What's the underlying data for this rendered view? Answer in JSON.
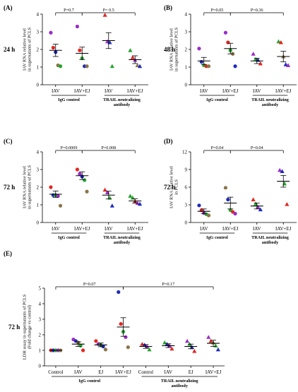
{
  "colors": {
    "red": "#e3261f",
    "blue": "#1f2bbd",
    "green": "#27a32f",
    "purple": "#9a2cc8",
    "olive": "#8a7548",
    "black": "#111111"
  },
  "chart_data": [
    {
      "panel": "(A)",
      "time": "24 h",
      "type": "scatter",
      "ylabel": [
        "IAV RNA relative level",
        "in supernatants of PCLS"
      ],
      "ylim": [
        0,
        4
      ],
      "yticks": [
        0,
        1,
        2,
        3,
        4
      ],
      "categories": [
        "IAV",
        "IAV+EJ",
        "IAV",
        "IAV+EJ"
      ],
      "groups": [
        "IgG control",
        "TRAIL neutralizing antibody"
      ],
      "means": [
        1.95,
        1.78,
        2.5,
        1.42
      ],
      "sem": [
        0.35,
        0.35,
        0.45,
        0.22
      ],
      "points": [
        [
          {
            "y": 2.95,
            "c": "purple",
            "m": "circle"
          },
          {
            "y": 2.1,
            "c": "red",
            "m": "circle"
          },
          {
            "y": 1.85,
            "c": "blue",
            "m": "circle"
          },
          {
            "y": 1.1,
            "c": "olive",
            "m": "circle"
          },
          {
            "y": 1.05,
            "c": "green",
            "m": "circle"
          }
        ],
        [
          {
            "y": 3.3,
            "c": "purple",
            "m": "circle"
          },
          {
            "y": 1.95,
            "c": "red",
            "m": "circle"
          },
          {
            "y": 1.5,
            "c": "green",
            "m": "circle"
          },
          {
            "y": 1.05,
            "c": "blue",
            "m": "circle"
          },
          {
            "y": 1.05,
            "c": "olive",
            "m": "circle"
          }
        ],
        [
          {
            "y": 3.95,
            "c": "red",
            "m": "triangle"
          },
          {
            "y": 2.45,
            "c": "purple",
            "m": "triangle"
          },
          {
            "y": 2.4,
            "c": "blue",
            "m": "triangle"
          },
          {
            "y": 1.05,
            "c": "green",
            "m": "triangle"
          }
        ],
        [
          {
            "y": 1.95,
            "c": "green",
            "m": "triangle"
          },
          {
            "y": 1.55,
            "c": "red",
            "m": "triangle"
          },
          {
            "y": 1.4,
            "c": "purple",
            "m": "triangle"
          },
          {
            "y": 1.1,
            "c": "olive",
            "m": "triangle"
          },
          {
            "y": 1.05,
            "c": "blue",
            "m": "triangle"
          }
        ]
      ],
      "comparisons": [
        {
          "from": 0,
          "to": 1,
          "label": "P=0.7",
          "level": 0
        },
        {
          "from": 1,
          "to": 3,
          "label": "P= 0.5",
          "level": 0
        }
      ]
    },
    {
      "panel": "(B)",
      "time": "48 h",
      "type": "scatter",
      "ylabel": [
        "IAV RNA relative level",
        "in supernatants of PCLS"
      ],
      "ylim": [
        0,
        4
      ],
      "yticks": [
        0,
        1,
        2,
        3,
        4
      ],
      "categories": [
        "IAV",
        "IAV+EJ",
        "IAV",
        "IAV+EJ"
      ],
      "groups": [
        "IgG control",
        "TRAIL neutralizing antibody"
      ],
      "means": [
        1.35,
        2.05,
        1.35,
        1.6
      ],
      "sem": [
        0.2,
        0.3,
        0.15,
        0.3
      ],
      "points": [
        [
          {
            "y": 2.05,
            "c": "purple",
            "m": "circle"
          },
          {
            "y": 1.3,
            "c": "blue",
            "m": "circle"
          },
          {
            "y": 1.1,
            "c": "green",
            "m": "circle"
          },
          {
            "y": 1.05,
            "c": "red",
            "m": "circle"
          },
          {
            "y": 1.05,
            "c": "olive",
            "m": "circle"
          }
        ],
        [
          {
            "y": 2.95,
            "c": "purple",
            "m": "circle"
          },
          {
            "y": 2.4,
            "c": "red",
            "m": "circle"
          },
          {
            "y": 1.95,
            "c": "green",
            "m": "circle"
          },
          {
            "y": 1.75,
            "c": "olive",
            "m": "circle"
          },
          {
            "y": 1.05,
            "c": "blue",
            "m": "circle"
          }
        ],
        [
          {
            "y": 1.75,
            "c": "purple",
            "m": "triangle"
          },
          {
            "y": 1.45,
            "c": "green",
            "m": "triangle"
          },
          {
            "y": 1.4,
            "c": "blue",
            "m": "triangle"
          },
          {
            "y": 1.2,
            "c": "red",
            "m": "triangle"
          }
        ],
        [
          {
            "y": 2.45,
            "c": "green",
            "m": "triangle"
          },
          {
            "y": 2.4,
            "c": "red",
            "m": "triangle"
          },
          {
            "y": 1.6,
            "c": "olive",
            "m": "triangle"
          },
          {
            "y": 1.15,
            "c": "blue",
            "m": "triangle"
          },
          {
            "y": 1.1,
            "c": "purple",
            "m": "triangle"
          }
        ]
      ],
      "comparisons": [
        {
          "from": 0,
          "to": 1,
          "label": "P=0.05",
          "level": 0
        },
        {
          "from": 1,
          "to": 3,
          "label": "P=0.36",
          "level": 0
        }
      ]
    },
    {
      "panel": "(C)",
      "time": "72 h",
      "type": "scatter",
      "ylabel": [
        "IAV RNA relative level",
        "in supernatants of PCLS"
      ],
      "ylim": [
        0,
        4
      ],
      "yticks": [
        0,
        1,
        2,
        3,
        4
      ],
      "categories": [
        "IAV",
        "IAV+EJ",
        "IAV",
        "IAV+EJ"
      ],
      "groups": [
        "IgG control",
        "TRAIL neutralizing antibody"
      ],
      "means": [
        1.6,
        2.65,
        1.55,
        1.22
      ],
      "sem": [
        0.18,
        0.22,
        0.22,
        0.12
      ],
      "points": [
        [
          {
            "y": 2.0,
            "c": "red",
            "m": "circle"
          },
          {
            "y": 1.55,
            "c": "blue",
            "m": "circle"
          },
          {
            "y": 1.55,
            "c": "green",
            "m": "circle"
          },
          {
            "y": 1.5,
            "c": "purple",
            "m": "circle"
          },
          {
            "y": 0.95,
            "c": "olive",
            "m": "circle"
          }
        ],
        [
          {
            "y": 3.0,
            "c": "red",
            "m": "circle"
          },
          {
            "y": 2.75,
            "c": "purple",
            "m": "circle"
          },
          {
            "y": 2.6,
            "c": "blue",
            "m": "circle"
          },
          {
            "y": 2.4,
            "c": "green",
            "m": "circle"
          },
          {
            "y": 1.75,
            "c": "olive",
            "m": "circle"
          }
        ],
        [
          {
            "y": 1.85,
            "c": "red",
            "m": "triangle"
          },
          {
            "y": 1.7,
            "c": "purple",
            "m": "triangle"
          },
          {
            "y": 1.4,
            "c": "green",
            "m": "triangle"
          },
          {
            "y": 0.95,
            "c": "blue",
            "m": "triangle"
          }
        ],
        [
          {
            "y": 1.5,
            "c": "green",
            "m": "triangle"
          },
          {
            "y": 1.4,
            "c": "green",
            "m": "triangle"
          },
          {
            "y": 1.2,
            "c": "red",
            "m": "triangle"
          },
          {
            "y": 1.1,
            "c": "purple",
            "m": "triangle"
          },
          {
            "y": 1.05,
            "c": "blue",
            "m": "triangle"
          }
        ]
      ],
      "comparisons": [
        {
          "from": 0,
          "to": 1,
          "label": "P=0.0009",
          "level": 0
        },
        {
          "from": 1,
          "to": 3,
          "label": "P=0.008",
          "level": 0
        }
      ]
    },
    {
      "panel": "(D)",
      "time": "72 h",
      "type": "scatter",
      "ylabel": [
        "IAV RNA relative level",
        "in PCLS"
      ],
      "ylim": [
        0,
        12
      ],
      "yticks": [
        0,
        3,
        6,
        9,
        12
      ],
      "categories": [
        "IAV",
        "IAV+EJ",
        "IAV",
        "IAV+EJ"
      ],
      "groups": [
        "IgG control",
        "TRAIL neutralizing antibody"
      ],
      "means": [
        1.9,
        3.3,
        2.8,
        7.0
      ],
      "sem": [
        0.4,
        1.0,
        0.5,
        1.0
      ],
      "points": [
        [
          {
            "y": 2.9,
            "c": "blue",
            "m": "circle"
          },
          {
            "y": 2.1,
            "c": "red",
            "m": "circle"
          },
          {
            "y": 1.6,
            "c": "purple",
            "m": "circle"
          },
          {
            "y": 1.4,
            "c": "green",
            "m": "circle"
          },
          {
            "y": 1.2,
            "c": "olive",
            "m": "circle"
          }
        ],
        [
          {
            "y": 5.9,
            "c": "olive",
            "m": "circle"
          },
          {
            "y": 3.9,
            "c": "blue",
            "m": "circle"
          },
          {
            "y": 2.1,
            "c": "green",
            "m": "circle"
          },
          {
            "y": 1.8,
            "c": "red",
            "m": "circle"
          },
          {
            "y": 1.5,
            "c": "purple",
            "m": "circle"
          }
        ],
        [
          {
            "y": 3.9,
            "c": "red",
            "m": "triangle"
          },
          {
            "y": 3.2,
            "c": "green",
            "m": "triangle"
          },
          {
            "y": 2.6,
            "c": "purple",
            "m": "triangle"
          },
          {
            "y": 2.2,
            "c": "blue",
            "m": "triangle"
          }
        ],
        [
          {
            "y": 8.9,
            "c": "purple",
            "m": "triangle"
          },
          {
            "y": 8.7,
            "c": "blue",
            "m": "triangle"
          },
          {
            "y": 6.6,
            "c": "green",
            "m": "triangle"
          },
          {
            "y": 3.1,
            "c": "red",
            "m": "triangle"
          }
        ]
      ],
      "comparisons": [
        {
          "from": 0,
          "to": 1,
          "label": "P=0.04",
          "level": 0
        },
        {
          "from": 1,
          "to": 3,
          "label": "P=0.04",
          "level": 0
        }
      ]
    },
    {
      "panel": "(E)",
      "time": "72 h",
      "type": "scatter",
      "ylabel": [
        "LDH assay in supernatants of PCLS",
        "(Fold change vs control)"
      ],
      "ylim": [
        0,
        5
      ],
      "yticks": [
        0,
        1,
        2,
        3,
        4,
        5
      ],
      "categories": [
        "Control",
        "IAV",
        "EJ",
        "IAV+EJ",
        "Control",
        "IAV",
        "EJ",
        "IAV+EJ"
      ],
      "groups": [
        "IgG control",
        "TRAIL neutralizing antibody"
      ],
      "means": [
        1.0,
        1.4,
        1.35,
        2.5,
        1.25,
        1.3,
        1.25,
        1.45
      ],
      "sem": [
        0.0,
        0.15,
        0.12,
        0.6,
        0.12,
        0.12,
        0.15,
        0.2
      ],
      "points": [
        [
          {
            "y": 1.0,
            "c": "red",
            "m": "circle"
          },
          {
            "y": 1.0,
            "c": "blue",
            "m": "circle"
          },
          {
            "y": 1.0,
            "c": "green",
            "m": "circle"
          },
          {
            "y": 1.0,
            "c": "purple",
            "m": "circle"
          },
          {
            "y": 1.0,
            "c": "olive",
            "m": "circle"
          }
        ],
        [
          {
            "y": 1.7,
            "c": "purple",
            "m": "circle"
          },
          {
            "y": 1.6,
            "c": "blue",
            "m": "circle"
          },
          {
            "y": 1.5,
            "c": "olive",
            "m": "circle"
          },
          {
            "y": 1.3,
            "c": "green",
            "m": "circle"
          },
          {
            "y": 1.0,
            "c": "red",
            "m": "circle"
          }
        ],
        [
          {
            "y": 1.6,
            "c": "red",
            "m": "circle"
          },
          {
            "y": 1.4,
            "c": "purple",
            "m": "circle"
          },
          {
            "y": 1.35,
            "c": "green",
            "m": "circle"
          },
          {
            "y": 1.25,
            "c": "blue",
            "m": "circle"
          },
          {
            "y": 1.05,
            "c": "olive",
            "m": "circle"
          }
        ],
        [
          {
            "y": 4.75,
            "c": "blue",
            "m": "circle"
          },
          {
            "y": 2.7,
            "c": "red",
            "m": "circle"
          },
          {
            "y": 2.2,
            "c": "green",
            "m": "circle"
          },
          {
            "y": 1.85,
            "c": "purple",
            "m": "circle"
          },
          {
            "y": 1.2,
            "c": "olive",
            "m": "circle"
          }
        ],
        [
          {
            "y": 1.4,
            "c": "red",
            "m": "triangle"
          },
          {
            "y": 1.35,
            "c": "blue",
            "m": "triangle"
          },
          {
            "y": 1.25,
            "c": "purple",
            "m": "triangle"
          },
          {
            "y": 1.05,
            "c": "green",
            "m": "triangle"
          }
        ],
        [
          {
            "y": 1.5,
            "c": "green",
            "m": "triangle"
          },
          {
            "y": 1.4,
            "c": "blue",
            "m": "triangle"
          },
          {
            "y": 1.3,
            "c": "purple",
            "m": "triangle"
          },
          {
            "y": 1.1,
            "c": "red",
            "m": "triangle"
          }
        ],
        [
          {
            "y": 1.6,
            "c": "purple",
            "m": "triangle"
          },
          {
            "y": 1.4,
            "c": "green",
            "m": "triangle"
          },
          {
            "y": 1.2,
            "c": "blue",
            "m": "triangle"
          },
          {
            "y": 0.95,
            "c": "red",
            "m": "triangle"
          }
        ],
        [
          {
            "y": 1.85,
            "c": "purple",
            "m": "triangle"
          },
          {
            "y": 1.6,
            "c": "red",
            "m": "triangle"
          },
          {
            "y": 1.5,
            "c": "olive",
            "m": "triangle"
          },
          {
            "y": 1.3,
            "c": "green",
            "m": "triangle"
          },
          {
            "y": 1.05,
            "c": "blue",
            "m": "triangle"
          }
        ]
      ],
      "comparisons": [
        {
          "from": 0,
          "to": 3,
          "label": "P=0.07",
          "level": 0
        },
        {
          "from": 3,
          "to": 7,
          "label": "P=0.17",
          "level": 0
        }
      ]
    }
  ]
}
